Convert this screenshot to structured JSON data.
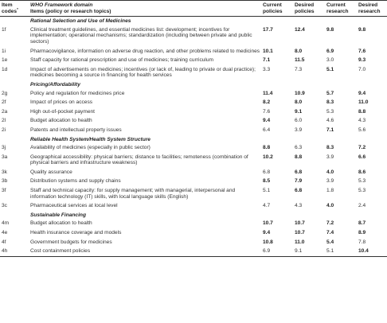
{
  "header": {
    "code": "Item codes",
    "code_sup": "*",
    "domain": "WHO Framework domain",
    "items": "Items (policy or research topics)",
    "cp": "Current policies",
    "dp": "Desired policies",
    "cr": "Current research",
    "dr": "Desired research"
  },
  "sections": [
    {
      "title": "Rational Selection and Use of Medicines",
      "rows": [
        {
          "code": "1f",
          "text": "Clinical treatment guidelines, and essential medicines list: development; incentives for implementation; operational mechanisms; standardization (including between private and public sectors)",
          "v": [
            "17.7",
            "12.4",
            "9.8",
            "9.8"
          ],
          "b": [
            true,
            true,
            true,
            true
          ]
        },
        {
          "code": "1i",
          "text": "Pharmacovigilance, information on adverse drug reaction, and other problems related to medicines",
          "v": [
            "10.1",
            "8.0",
            "6.9",
            "7.6"
          ],
          "b": [
            true,
            true,
            true,
            true
          ]
        },
        {
          "code": "1e",
          "text": "Staff capacity for rational prescription and use of medicines; training curriculum",
          "v": [
            "7.1",
            "11.5",
            "3.0",
            "9.3"
          ],
          "b": [
            true,
            true,
            false,
            true
          ]
        },
        {
          "code": "1d",
          "text": "Impact of advertisements on medicines; incentives (or lack of, leading to private or dual practice); medicines becoming a source in financing for health services",
          "v": [
            "3.3",
            "7.3",
            "5.1",
            "7.0"
          ],
          "b": [
            false,
            false,
            true,
            false
          ]
        }
      ]
    },
    {
      "title": "Pricing/Affordability",
      "rows": [
        {
          "code": "2g",
          "text": "Policy and regulation for medicines price",
          "v": [
            "11.4",
            "10.9",
            "5.7",
            "9.4"
          ],
          "b": [
            true,
            true,
            true,
            true
          ]
        },
        {
          "code": "2f",
          "text": "Impact of prices on access",
          "v": [
            "8.2",
            "8.0",
            "8.3",
            "11.0"
          ],
          "b": [
            true,
            true,
            true,
            true
          ]
        },
        {
          "code": "2a",
          "text": "High out-of-pocket payment",
          "v": [
            "7.6",
            "9.1",
            "5.3",
            "8.8"
          ],
          "b": [
            false,
            true,
            false,
            true
          ]
        },
        {
          "code": "2l",
          "text": "Budget allocation to health",
          "v": [
            "9.4",
            "6.0",
            "4.6",
            "4.3"
          ],
          "b": [
            true,
            false,
            false,
            false
          ]
        },
        {
          "code": "2i",
          "text": "Patents and intellectual property issues",
          "v": [
            "6.4",
            "3.9",
            "7.1",
            "5.6"
          ],
          "b": [
            false,
            false,
            true,
            false
          ]
        }
      ]
    },
    {
      "title": "Reliable Health System/Health System Structure",
      "rows": [
        {
          "code": "3j",
          "text": "Availability of medicines (especially in public sector)",
          "v": [
            "8.8",
            "6.3",
            "8.3",
            "7.2"
          ],
          "b": [
            true,
            false,
            true,
            true
          ]
        },
        {
          "code": "3a",
          "text": "Geographical accessibility: physical barriers; distance to facilities; remoteness (combination of physical barriers and infrastructure weakness)",
          "v": [
            "10.2",
            "8.8",
            "3.9",
            "6.6"
          ],
          "b": [
            true,
            true,
            false,
            true
          ]
        },
        {
          "code": "3k",
          "text": "Quality assurance",
          "v": [
            "6.8",
            "6.8",
            "4.0",
            "8.6"
          ],
          "b": [
            false,
            true,
            true,
            true
          ]
        },
        {
          "code": "3b",
          "text": "Distribution systems and supply chains",
          "v": [
            "8.5",
            "7.9",
            "3.9",
            "5.3"
          ],
          "b": [
            true,
            true,
            false,
            false
          ]
        },
        {
          "code": "3f",
          "text": "Staff and technical capacity: for supply management; with managerial, interpersonal and information technology (IT) skills, with local language skills (English)",
          "v": [
            "5.1",
            "6.8",
            "1.8",
            "5.3"
          ],
          "b": [
            false,
            true,
            false,
            false
          ]
        },
        {
          "code": "3c",
          "text": "Pharmaceutical services at local level",
          "v": [
            "4.7",
            "4.3",
            "4.0",
            "2.4"
          ],
          "b": [
            false,
            false,
            true,
            false
          ]
        }
      ]
    },
    {
      "title": "Sustainable Financing",
      "rows": [
        {
          "code": "4m",
          "text": "Budget allocation to health",
          "v": [
            "10.7",
            "10.7",
            "7.2",
            "8.7"
          ],
          "b": [
            true,
            true,
            true,
            true
          ]
        },
        {
          "code": "4e",
          "text": "Health insurance coverage and models",
          "v": [
            "9.4",
            "10.7",
            "7.4",
            "8.9"
          ],
          "b": [
            true,
            true,
            true,
            true
          ]
        },
        {
          "code": "4f",
          "text": "Government budgets for medicines",
          "v": [
            "10.8",
            "11.0",
            "5.4",
            "7.8"
          ],
          "b": [
            true,
            true,
            true,
            false
          ]
        },
        {
          "code": "4h",
          "text": "Cost containment policies",
          "v": [
            "6.9",
            "9.1",
            "5.1",
            "10.4"
          ],
          "b": [
            false,
            false,
            false,
            true
          ]
        }
      ]
    }
  ]
}
